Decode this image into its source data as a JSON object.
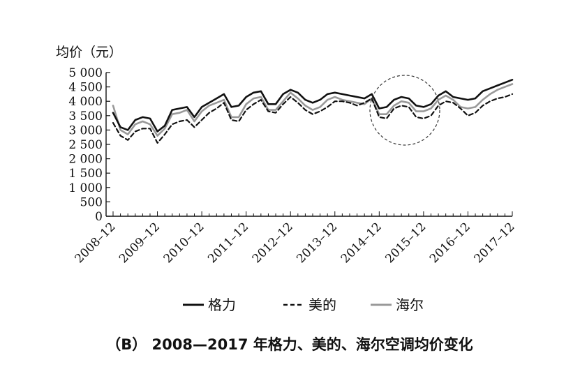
{
  "chart_data": {
    "type": "line",
    "title": "（B） 2008—2017 年格力、美的、海尔空调均价变化",
    "ylabel": "均价（元）",
    "xlabel": "",
    "ylim": [
      0,
      5000
    ],
    "yticks": [
      0,
      500,
      1000,
      1500,
      2000,
      2500,
      3000,
      3500,
      4000,
      4500,
      5000
    ],
    "ytick_labels": [
      "0",
      "500",
      "1 000",
      "1 500",
      "2 000",
      "2 500",
      "3 000",
      "3 500",
      "4 000",
      "4 500",
      "5 000"
    ],
    "xticks": [
      "2008–12",
      "2009–12",
      "2010–12",
      "2011–12",
      "2012–12",
      "2013–12",
      "2014–12",
      "2015–12",
      "2016–12",
      "2017–12"
    ],
    "legend_position": "bottom",
    "x": [
      "2008-12",
      "2009-02",
      "2009-04",
      "2009-06",
      "2009-08",
      "2009-10",
      "2009-12",
      "2010-02",
      "2010-04",
      "2010-06",
      "2010-08",
      "2010-10",
      "2010-12",
      "2011-02",
      "2011-04",
      "2011-06",
      "2011-08",
      "2011-10",
      "2011-12",
      "2012-02",
      "2012-04",
      "2012-06",
      "2012-08",
      "2012-10",
      "2012-12",
      "2013-02",
      "2013-04",
      "2013-06",
      "2013-08",
      "2013-10",
      "2013-12",
      "2014-02",
      "2014-04",
      "2014-06",
      "2014-08",
      "2014-10",
      "2014-12",
      "2015-02",
      "2015-04",
      "2015-06",
      "2015-08",
      "2015-10",
      "2015-12",
      "2016-02",
      "2016-04",
      "2016-06",
      "2016-08",
      "2016-10",
      "2016-12",
      "2017-02",
      "2017-04",
      "2017-06",
      "2017-08",
      "2017-10",
      "2017-12"
    ],
    "series": [
      {
        "name": "格力",
        "style": "solid",
        "color": "#111111",
        "values": [
          3600,
          3100,
          3000,
          3350,
          3450,
          3400,
          2950,
          3150,
          3700,
          3750,
          3800,
          3450,
          3800,
          3950,
          4100,
          4250,
          3800,
          3850,
          4150,
          4300,
          4350,
          3900,
          3900,
          4250,
          4400,
          4300,
          4050,
          3950,
          4050,
          4250,
          4300,
          4250,
          4200,
          4150,
          4100,
          4250,
          3750,
          3800,
          4050,
          4150,
          4100,
          3850,
          3800,
          3900,
          4200,
          4350,
          4150,
          4100,
          4050,
          4100,
          4350,
          4450,
          4550,
          4650,
          4750
        ]
      },
      {
        "name": "美的",
        "style": "dashed",
        "color": "#111111",
        "values": [
          3250,
          2800,
          2650,
          2950,
          3050,
          3050,
          2550,
          2850,
          3200,
          3300,
          3350,
          3100,
          3350,
          3600,
          3750,
          3950,
          3350,
          3300,
          3700,
          3900,
          4050,
          3650,
          3600,
          3900,
          4150,
          3950,
          3700,
          3550,
          3650,
          3800,
          4000,
          4000,
          3950,
          3850,
          3950,
          4100,
          3450,
          3400,
          3750,
          3850,
          3800,
          3450,
          3400,
          3500,
          3850,
          4000,
          3950,
          3750,
          3500,
          3600,
          3850,
          4000,
          4100,
          4150,
          4250
        ]
      },
      {
        "name": "海尔",
        "style": "solid",
        "color": "#999999",
        "values": [
          3850,
          3000,
          2850,
          3200,
          3300,
          3200,
          2800,
          3050,
          3550,
          3600,
          3700,
          3300,
          3650,
          3850,
          3950,
          4050,
          3450,
          3450,
          3900,
          4100,
          4150,
          3700,
          3700,
          4000,
          4300,
          4100,
          3850,
          3700,
          3800,
          4050,
          4150,
          4050,
          4000,
          3950,
          3900,
          4100,
          3550,
          3550,
          3850,
          4000,
          3950,
          3650,
          3650,
          3750,
          4050,
          4200,
          4050,
          3800,
          3750,
          3800,
          4050,
          4250,
          4400,
          4500,
          4600
        ]
      }
    ]
  }
}
